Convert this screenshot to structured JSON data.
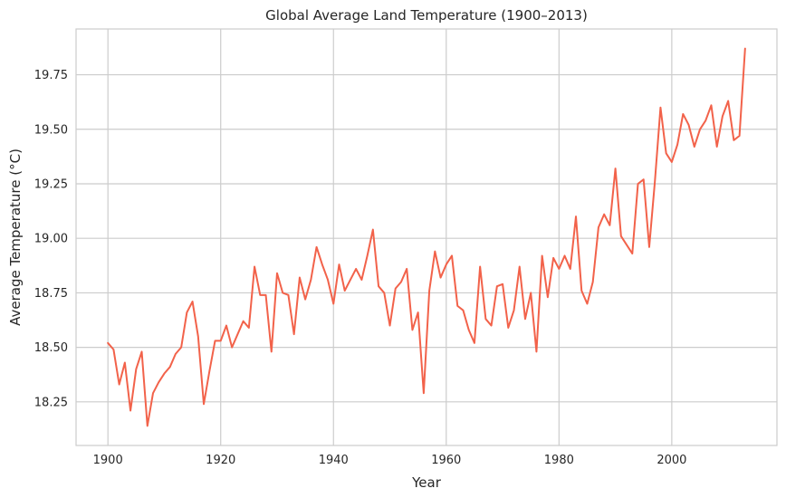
{
  "chart_data": {
    "type": "line",
    "title": "Global Average Land Temperature (1900–2013)",
    "xlabel": "Year",
    "ylabel": "Average Temperature (°C)",
    "xlim": [
      1894.35,
      2018.65
    ],
    "ylim": [
      18.05,
      19.96
    ],
    "x_ticks": [
      1900,
      1920,
      1940,
      1960,
      1980,
      2000
    ],
    "y_ticks": [
      18.25,
      18.5,
      18.75,
      19.0,
      19.25,
      19.5,
      19.75
    ],
    "x_tick_labels": [
      "1900",
      "1920",
      "1940",
      "1960",
      "1980",
      "2000"
    ],
    "y_tick_labels": [
      "18.25",
      "18.50",
      "18.75",
      "19.00",
      "19.25",
      "19.50",
      "19.75"
    ],
    "grid": true,
    "line_color": "#f2624a",
    "series": [
      {
        "x": [
          1900,
          1901,
          1902,
          1903,
          1904,
          1905,
          1906,
          1907,
          1908,
          1909,
          1910,
          1911,
          1912,
          1913,
          1914,
          1915,
          1916,
          1917,
          1918,
          1919,
          1920,
          1921,
          1922,
          1923,
          1924,
          1925,
          1926,
          1927,
          1928,
          1929,
          1930,
          1931,
          1932,
          1933,
          1934,
          1935,
          1936,
          1937,
          1938,
          1939,
          1940,
          1941,
          1942,
          1943,
          1944,
          1945,
          1946,
          1947,
          1948,
          1949,
          1950,
          1951,
          1952,
          1953,
          1954,
          1955,
          1956,
          1957,
          1958,
          1959,
          1960,
          1961,
          1962,
          1963,
          1964,
          1965,
          1966,
          1967,
          1968,
          1969,
          1970,
          1971,
          1972,
          1973,
          1974,
          1975,
          1976,
          1977,
          1978,
          1979,
          1980,
          1981,
          1982,
          1983,
          1984,
          1985,
          1986,
          1987,
          1988,
          1989,
          1990,
          1991,
          1992,
          1993,
          1994,
          1995,
          1996,
          1997,
          1998,
          1999,
          2000,
          2001,
          2002,
          2003,
          2004,
          2005,
          2006,
          2007,
          2008,
          2009,
          2010,
          2011,
          2012,
          2013
        ],
        "y": [
          18.52,
          18.49,
          18.33,
          18.43,
          18.21,
          18.4,
          18.48,
          18.14,
          18.29,
          18.34,
          18.38,
          18.41,
          18.47,
          18.5,
          18.66,
          18.71,
          18.55,
          18.24,
          18.39,
          18.53,
          18.53,
          18.6,
          18.5,
          18.56,
          18.62,
          18.59,
          18.87,
          18.74,
          18.74,
          18.48,
          18.84,
          18.75,
          18.74,
          18.56,
          18.82,
          18.72,
          18.81,
          18.96,
          18.88,
          18.81,
          18.7,
          18.88,
          18.76,
          18.81,
          18.86,
          18.81,
          18.92,
          19.04,
          18.78,
          18.75,
          18.6,
          18.77,
          18.8,
          18.86,
          18.58,
          18.66,
          18.29,
          18.76,
          18.94,
          18.82,
          18.88,
          18.92,
          18.69,
          18.67,
          18.58,
          18.52,
          18.87,
          18.63,
          18.6,
          18.78,
          18.79,
          18.59,
          18.67,
          18.87,
          18.63,
          18.75,
          18.48,
          18.92,
          18.73,
          18.91,
          18.86,
          18.92,
          18.86,
          19.1,
          18.76,
          18.7,
          18.8,
          19.05,
          19.11,
          19.06,
          19.32,
          19.01,
          18.97,
          18.93,
          19.25,
          19.27,
          18.96,
          19.26,
          19.6,
          19.39,
          19.35,
          19.43,
          19.57,
          19.52,
          19.42,
          19.5,
          19.54,
          19.61,
          19.42,
          19.56,
          19.63,
          19.45,
          19.47,
          19.87
        ]
      }
    ]
  }
}
